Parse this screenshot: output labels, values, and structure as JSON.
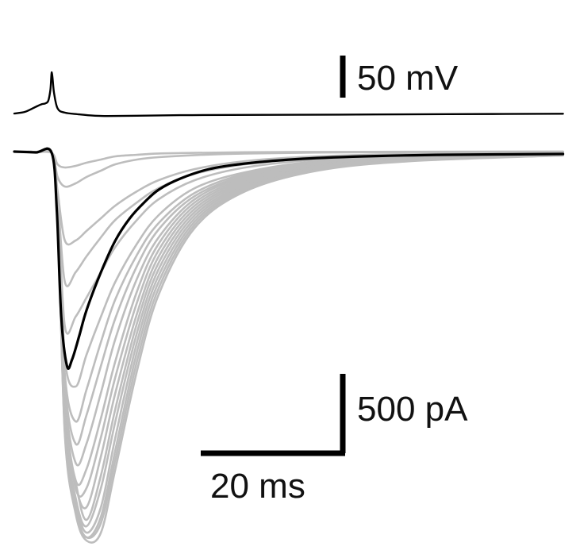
{
  "chart_data": {
    "type": "line",
    "title": "",
    "xlabel": "",
    "ylabel": "",
    "grid": false,
    "legend": "none",
    "series": [
      {
        "role": "voltage-trace",
        "color": "#000000",
        "units": {
          "x": "ms",
          "y": "mV"
        },
        "x": [
          0,
          1.5,
          3,
          3.8,
          4.3,
          4.7,
          5.0,
          5.2,
          5.5,
          6.0,
          7,
          9,
          11,
          13,
          17,
          23,
          30,
          45,
          60,
          76
        ],
        "y": [
          0,
          2,
          8,
          11,
          12,
          15,
          28,
          49,
          25,
          6,
          1,
          -1,
          -2.5,
          -3,
          -2.6,
          -2,
          -1.7,
          -1.3,
          -0.8,
          -0.3
        ]
      },
      {
        "role": "mean-current",
        "color": "#000000",
        "units": {
          "x": "ms",
          "y": "pA"
        },
        "x": [
          0,
          3,
          5.2,
          5.9,
          6.5,
          7.3,
          8.0,
          9.0,
          10,
          12,
          14,
          16,
          18,
          20,
          23,
          27,
          32,
          40,
          50,
          60,
          76
        ],
        "y": [
          0,
          -5,
          -10,
          -380,
          -1040,
          -1350,
          -1310,
          -1160,
          -1000,
          -760,
          -560,
          -420,
          -320,
          -240,
          -170,
          -110,
          -75,
          -45,
          -28,
          -20,
          -15
        ]
      }
    ],
    "sweeps": {
      "color": "#bdbdbd",
      "units": {
        "x": "ms",
        "y": "pA"
      },
      "x": [
        0,
        3,
        5.2,
        6.0,
        7.0,
        8.5,
        10,
        12,
        14,
        17,
        20,
        25,
        32,
        42,
        55,
        76
      ],
      "traces": [
        [
          0,
          -2,
          -8,
          -80,
          -100,
          -90,
          -70,
          -50,
          -30,
          -20,
          -12,
          -8,
          -4,
          -2,
          -1,
          0
        ],
        [
          0,
          -2,
          -8,
          -160,
          -220,
          -200,
          -160,
          -120,
          -80,
          -50,
          -35,
          -22,
          -12,
          -6,
          -3,
          0
        ],
        [
          0,
          -2,
          -8,
          -250,
          -560,
          -560,
          -500,
          -420,
          -340,
          -250,
          -180,
          -110,
          -60,
          -30,
          -15,
          -8
        ],
        [
          0,
          -2,
          -8,
          -280,
          -820,
          -760,
          -660,
          -540,
          -430,
          -320,
          -230,
          -140,
          -80,
          -40,
          -20,
          -10
        ],
        [
          0,
          -2,
          -8,
          -300,
          -1100,
          -1040,
          -920,
          -760,
          -600,
          -430,
          -300,
          -180,
          -100,
          -50,
          -25,
          -12
        ],
        [
          0,
          -2,
          -8,
          -320,
          -1300,
          -1480,
          -1280,
          -1040,
          -820,
          -580,
          -400,
          -230,
          -130,
          -60,
          -30,
          -15
        ],
        [
          0,
          -2,
          -8,
          -330,
          -1400,
          -1700,
          -1500,
          -1200,
          -930,
          -650,
          -450,
          -260,
          -140,
          -70,
          -35,
          -15
        ],
        [
          0,
          -2,
          -8,
          -330,
          -1450,
          -1840,
          -1660,
          -1350,
          -1050,
          -720,
          -490,
          -280,
          -150,
          -70,
          -35,
          -15
        ],
        [
          0,
          -2,
          -8,
          -340,
          -1500,
          -1960,
          -1840,
          -1520,
          -1180,
          -800,
          -540,
          -300,
          -160,
          -80,
          -40,
          -18
        ],
        [
          0,
          -2,
          -8,
          -340,
          -1550,
          -2070,
          -2000,
          -1680,
          -1320,
          -880,
          -580,
          -320,
          -170,
          -85,
          -40,
          -18
        ],
        [
          0,
          -2,
          -8,
          -350,
          -1600,
          -2120,
          -2120,
          -1800,
          -1420,
          -950,
          -620,
          -340,
          -180,
          -90,
          -45,
          -20
        ],
        [
          0,
          -2,
          -8,
          -350,
          -1640,
          -2100,
          -2240,
          -1920,
          -1520,
          -1020,
          -660,
          -360,
          -190,
          -95,
          -45,
          -20
        ],
        [
          0,
          -2,
          -8,
          -350,
          -1660,
          -2080,
          -2320,
          -2040,
          -1620,
          -1080,
          -700,
          -380,
          -200,
          -100,
          -50,
          -20
        ],
        [
          0,
          -2,
          -8,
          -360,
          -1700,
          -2180,
          -2360,
          -2120,
          -1700,
          -1140,
          -740,
          -400,
          -210,
          -100,
          -50,
          -22
        ],
        [
          0,
          -2,
          -8,
          -360,
          -1720,
          -2200,
          -2400,
          -2240,
          -1800,
          -1200,
          -780,
          -420,
          -220,
          -110,
          -55,
          -22
        ],
        [
          0,
          -2,
          -8,
          -360,
          -1740,
          -2240,
          -2430,
          -2300,
          -1880,
          -1260,
          -820,
          -440,
          -230,
          -110,
          -55,
          -22
        ],
        [
          0,
          -2,
          -8,
          -360,
          -1760,
          -2260,
          -2430,
          -2340,
          -1940,
          -1320,
          -860,
          -460,
          -240,
          -115,
          -55,
          -24
        ],
        [
          0,
          -2,
          -8,
          -360,
          -1780,
          -2280,
          -2450,
          -2400,
          -2000,
          -1380,
          -900,
          -480,
          -250,
          -120,
          -60,
          -24
        ]
      ]
    },
    "scale_bars": [
      {
        "label": "50 mV",
        "value": 50,
        "units": "mV"
      },
      {
        "label": "500 pA",
        "value": 500,
        "units": "pA"
      },
      {
        "label": "20 ms",
        "value": 20,
        "units": "ms"
      }
    ]
  }
}
